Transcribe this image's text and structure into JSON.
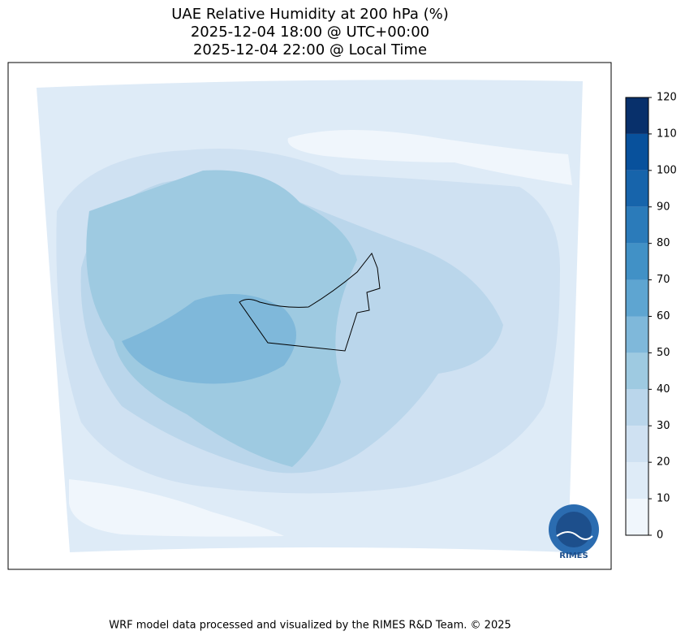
{
  "header": {
    "title": "UAE Relative Humidity at 200 hPa (%)",
    "utc_time": "2025-12-04 18:00 @ UTC+00:00",
    "local_time": "2025-12-04 22:00 @ Local Time"
  },
  "colorbar": {
    "ticks": [
      0,
      10,
      20,
      30,
      40,
      50,
      60,
      70,
      80,
      90,
      100,
      110,
      120
    ],
    "colors": [
      "#f0f6fc",
      "#deebf7",
      "#cfe1f2",
      "#bad6eb",
      "#9ecae1",
      "#7fb8da",
      "#5ea5d1",
      "#4191c6",
      "#2b7bba",
      "#1764ab",
      "#08519c",
      "#08306b"
    ]
  },
  "logo": {
    "text": "RIMES"
  },
  "footer": {
    "credit": "WRF model data processed and visualized by the RIMES R&D Team. © 2025"
  }
}
